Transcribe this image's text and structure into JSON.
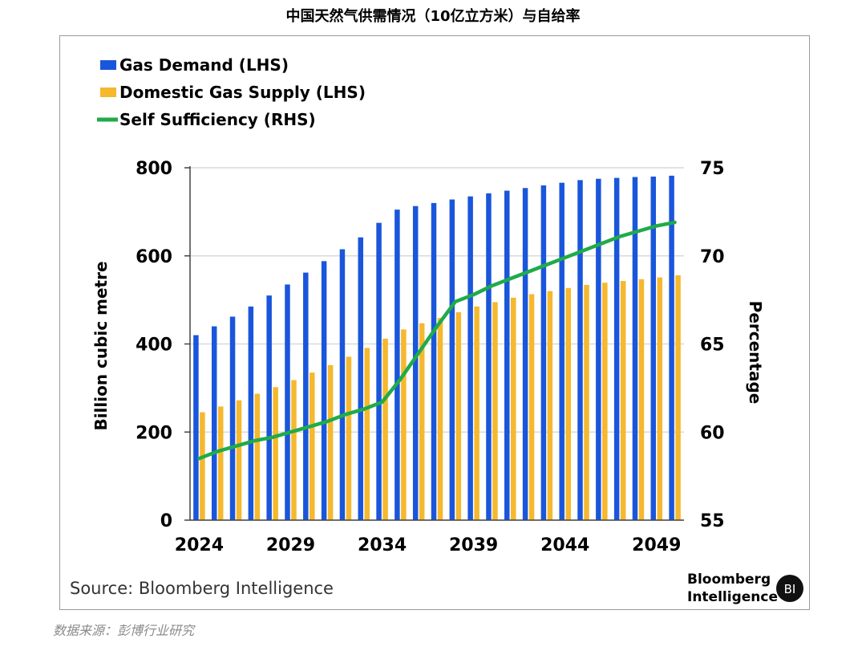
{
  "page_title": "中国天然气供需情况（10亿立方米）与自给率",
  "footnote": "数据来源：彭博行业研究",
  "source_text": "Source: Bloomberg Intelligence",
  "brand": {
    "name_line1": "Bloomberg",
    "name_line2": "Intelligence",
    "badge": "BI"
  },
  "colors": {
    "demand": "#1a56db",
    "supply": "#f5b82e",
    "sufficiency": "#1fab4a",
    "grid": "#d9d9d9"
  },
  "chart_data": {
    "type": "bar",
    "title": "中国天然气供需情况（10亿立方米）与自给率",
    "x": [
      2024,
      2025,
      2026,
      2027,
      2028,
      2029,
      2030,
      2031,
      2032,
      2033,
      2034,
      2035,
      2036,
      2037,
      2038,
      2039,
      2040,
      2041,
      2042,
      2043,
      2044,
      2045,
      2046,
      2047,
      2048,
      2049,
      2050
    ],
    "x_tick_labels": [
      "2024",
      "2029",
      "2034",
      "2039",
      "2044",
      "2049"
    ],
    "series": [
      {
        "name": "Gas Demand (LHS)",
        "axis": "left",
        "kind": "bar",
        "values": [
          420,
          440,
          462,
          485,
          510,
          535,
          562,
          588,
          615,
          642,
          675,
          705,
          713,
          720,
          728,
          735,
          742,
          748,
          754,
          760,
          766,
          772,
          775,
          777,
          779,
          780,
          782
        ]
      },
      {
        "name": "Domestic Gas Supply (LHS)",
        "axis": "left",
        "kind": "bar",
        "values": [
          245,
          258,
          272,
          287,
          302,
          318,
          335,
          352,
          371,
          391,
          412,
          433,
          447,
          459,
          472,
          485,
          495,
          505,
          513,
          520,
          527,
          534,
          539,
          543,
          547,
          551,
          556
        ]
      },
      {
        "name": "Self Sufficiency (RHS)",
        "axis": "right",
        "kind": "line",
        "values": [
          58.5,
          58.9,
          59.2,
          59.5,
          59.7,
          60.0,
          60.3,
          60.6,
          61.0,
          61.3,
          61.7,
          63.0,
          64.5,
          66.0,
          67.4,
          67.8,
          68.3,
          68.7,
          69.1,
          69.5,
          69.9,
          70.3,
          70.7,
          71.1,
          71.4,
          71.7,
          71.9
        ]
      }
    ],
    "ylabel": "Billion cubic metre",
    "ylabel_right": "Percentage",
    "ylim": [
      0,
      800
    ],
    "ylim_right": [
      55,
      75
    ],
    "yticks": [
      0,
      200,
      400,
      600,
      800
    ],
    "yticks_right": [
      55,
      60,
      65,
      70,
      75
    ],
    "grid": true,
    "legend_position": "top-left"
  }
}
